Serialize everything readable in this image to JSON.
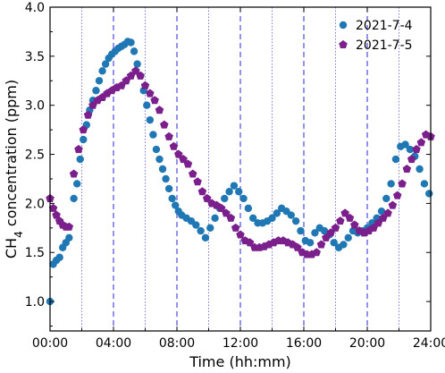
{
  "chart_data": {
    "type": "scatter",
    "xlabel": "Time (hh:mm)",
    "ylabel_main": "CH",
    "ylabel_sub": "4",
    "ylabel_rest": " concentration (ppm)",
    "xlim": [
      0,
      24
    ],
    "ylim": [
      0.7,
      4.0
    ],
    "x_ticks": [
      0,
      4,
      8,
      12,
      16,
      20,
      24
    ],
    "x_tick_labels": [
      "00:00",
      "04:00",
      "08:00",
      "12:00",
      "16:00",
      "20:00",
      "24:00"
    ],
    "y_ticks": [
      1.0,
      1.5,
      2.0,
      2.5,
      3.0,
      3.5,
      4.0
    ],
    "y_tick_labels": [
      "1.0",
      "1.5",
      "2.0",
      "2.5",
      "3.0",
      "3.5",
      "4.0"
    ],
    "vlines_minor_dotted": [
      2,
      6,
      10,
      14,
      18,
      22
    ],
    "vlines_major_dashed": [
      4,
      8,
      12,
      16,
      20
    ],
    "legend_position": "top-right",
    "series": [
      {
        "name": "2021-7-4",
        "color": "#1f77b4",
        "marker": "circle",
        "points": [
          [
            0.0,
            1.0
          ],
          [
            0.2,
            1.38
          ],
          [
            0.4,
            1.42
          ],
          [
            0.6,
            1.45
          ],
          [
            0.8,
            1.55
          ],
          [
            1.0,
            1.6
          ],
          [
            1.2,
            1.65
          ],
          [
            1.5,
            2.05
          ],
          [
            1.7,
            2.2
          ],
          [
            1.9,
            2.45
          ],
          [
            2.1,
            2.65
          ],
          [
            2.3,
            2.8
          ],
          [
            2.5,
            2.95
          ],
          [
            2.7,
            3.05
          ],
          [
            2.9,
            3.15
          ],
          [
            3.1,
            3.25
          ],
          [
            3.3,
            3.35
          ],
          [
            3.5,
            3.42
          ],
          [
            3.7,
            3.48
          ],
          [
            3.9,
            3.52
          ],
          [
            4.1,
            3.55
          ],
          [
            4.3,
            3.58
          ],
          [
            4.5,
            3.6
          ],
          [
            4.7,
            3.62
          ],
          [
            4.9,
            3.65
          ],
          [
            5.1,
            3.64
          ],
          [
            5.3,
            3.55
          ],
          [
            5.5,
            3.42
          ],
          [
            5.7,
            3.3
          ],
          [
            5.9,
            3.15
          ],
          [
            6.1,
            3.0
          ],
          [
            6.3,
            2.85
          ],
          [
            6.5,
            2.7
          ],
          [
            6.7,
            2.55
          ],
          [
            6.9,
            2.45
          ],
          [
            7.1,
            2.35
          ],
          [
            7.3,
            2.25
          ],
          [
            7.5,
            2.15
          ],
          [
            7.7,
            2.05
          ],
          [
            7.9,
            1.98
          ],
          [
            8.1,
            1.92
          ],
          [
            8.3,
            1.88
          ],
          [
            8.6,
            1.85
          ],
          [
            8.9,
            1.82
          ],
          [
            9.2,
            1.78
          ],
          [
            9.5,
            1.72
          ],
          [
            9.8,
            1.65
          ],
          [
            10.1,
            1.75
          ],
          [
            10.4,
            1.85
          ],
          [
            10.7,
            1.95
          ],
          [
            11.0,
            2.05
          ],
          [
            11.3,
            2.12
          ],
          [
            11.6,
            2.18
          ],
          [
            11.9,
            2.12
          ],
          [
            12.2,
            2.05
          ],
          [
            12.5,
            1.95
          ],
          [
            12.8,
            1.85
          ],
          [
            13.1,
            1.8
          ],
          [
            13.4,
            1.8
          ],
          [
            13.7,
            1.82
          ],
          [
            14.0,
            1.85
          ],
          [
            14.3,
            1.9
          ],
          [
            14.6,
            1.95
          ],
          [
            14.9,
            1.92
          ],
          [
            15.2,
            1.88
          ],
          [
            15.5,
            1.82
          ],
          [
            15.8,
            1.72
          ],
          [
            16.1,
            1.62
          ],
          [
            16.4,
            1.6
          ],
          [
            16.7,
            1.7
          ],
          [
            17.0,
            1.75
          ],
          [
            17.3,
            1.72
          ],
          [
            17.6,
            1.68
          ],
          [
            17.9,
            1.6
          ],
          [
            18.2,
            1.55
          ],
          [
            18.5,
            1.58
          ],
          [
            18.8,
            1.65
          ],
          [
            19.1,
            1.72
          ],
          [
            19.4,
            1.7
          ],
          [
            19.7,
            1.72
          ],
          [
            20.0,
            1.75
          ],
          [
            20.3,
            1.8
          ],
          [
            20.6,
            1.85
          ],
          [
            20.9,
            1.92
          ],
          [
            21.2,
            2.05
          ],
          [
            21.5,
            2.2
          ],
          [
            21.8,
            2.45
          ],
          [
            22.1,
            2.58
          ],
          [
            22.4,
            2.6
          ],
          [
            22.7,
            2.55
          ],
          [
            23.0,
            2.48
          ],
          [
            23.3,
            2.35
          ],
          [
            23.6,
            2.2
          ],
          [
            23.9,
            2.1
          ]
        ]
      },
      {
        "name": "2021-7-5",
        "color": "#7b1f8c",
        "marker": "pentagon",
        "points": [
          [
            0.0,
            2.05
          ],
          [
            0.2,
            1.95
          ],
          [
            0.4,
            1.88
          ],
          [
            0.6,
            1.82
          ],
          [
            0.8,
            1.78
          ],
          [
            1.0,
            1.76
          ],
          [
            1.2,
            1.76
          ],
          [
            1.5,
            2.3
          ],
          [
            1.8,
            2.55
          ],
          [
            2.1,
            2.75
          ],
          [
            2.4,
            2.9
          ],
          [
            2.7,
            3.0
          ],
          [
            3.0,
            3.05
          ],
          [
            3.3,
            3.08
          ],
          [
            3.6,
            3.12
          ],
          [
            3.9,
            3.15
          ],
          [
            4.2,
            3.18
          ],
          [
            4.5,
            3.2
          ],
          [
            4.8,
            3.25
          ],
          [
            5.1,
            3.3
          ],
          [
            5.4,
            3.35
          ],
          [
            5.7,
            3.3
          ],
          [
            6.0,
            3.2
          ],
          [
            6.3,
            3.12
          ],
          [
            6.6,
            3.05
          ],
          [
            6.9,
            2.95
          ],
          [
            7.2,
            2.8
          ],
          [
            7.5,
            2.68
          ],
          [
            7.8,
            2.58
          ],
          [
            8.1,
            2.5
          ],
          [
            8.4,
            2.45
          ],
          [
            8.7,
            2.4
          ],
          [
            9.0,
            2.3
          ],
          [
            9.3,
            2.22
          ],
          [
            9.6,
            2.12
          ],
          [
            9.9,
            2.05
          ],
          [
            10.2,
            2.0
          ],
          [
            10.5,
            1.98
          ],
          [
            10.8,
            1.95
          ],
          [
            11.1,
            1.9
          ],
          [
            11.4,
            1.85
          ],
          [
            11.7,
            1.75
          ],
          [
            12.0,
            1.68
          ],
          [
            12.3,
            1.62
          ],
          [
            12.6,
            1.6
          ],
          [
            12.9,
            1.55
          ],
          [
            13.2,
            1.55
          ],
          [
            13.5,
            1.56
          ],
          [
            13.8,
            1.58
          ],
          [
            14.1,
            1.6
          ],
          [
            14.4,
            1.62
          ],
          [
            14.7,
            1.62
          ],
          [
            15.0,
            1.6
          ],
          [
            15.3,
            1.58
          ],
          [
            15.6,
            1.55
          ],
          [
            15.9,
            1.5
          ],
          [
            16.2,
            1.48
          ],
          [
            16.5,
            1.48
          ],
          [
            16.8,
            1.5
          ],
          [
            17.1,
            1.58
          ],
          [
            17.4,
            1.65
          ],
          [
            17.7,
            1.7
          ],
          [
            18.0,
            1.75
          ],
          [
            18.3,
            1.82
          ],
          [
            18.6,
            1.9
          ],
          [
            18.9,
            1.85
          ],
          [
            19.2,
            1.78
          ],
          [
            19.5,
            1.72
          ],
          [
            19.8,
            1.7
          ],
          [
            20.1,
            1.72
          ],
          [
            20.4,
            1.75
          ],
          [
            20.7,
            1.8
          ],
          [
            21.0,
            1.85
          ],
          [
            21.3,
            1.9
          ],
          [
            21.6,
            1.98
          ],
          [
            21.9,
            2.08
          ],
          [
            22.2,
            2.2
          ],
          [
            22.5,
            2.35
          ],
          [
            22.8,
            2.45
          ],
          [
            23.1,
            2.55
          ],
          [
            23.4,
            2.62
          ],
          [
            23.7,
            2.7
          ],
          [
            24.0,
            2.68
          ]
        ]
      }
    ]
  }
}
